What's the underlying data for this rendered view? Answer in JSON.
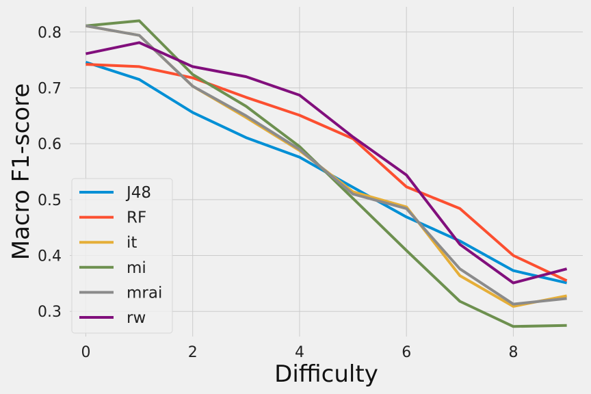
{
  "chart_data": {
    "type": "line",
    "xlabel": "Difficulty",
    "ylabel": "Macro F1-score",
    "xlim": [
      -0.3,
      9.3
    ],
    "ylim": [
      0.255,
      0.845
    ],
    "x": [
      0,
      1,
      2,
      3,
      4,
      5,
      6,
      7,
      8,
      9
    ],
    "x_ticks": [
      0,
      2,
      4,
      6,
      8
    ],
    "y_ticks": [
      0.3,
      0.4,
      0.5,
      0.6,
      0.7,
      0.8
    ],
    "x_tick_labels": [
      "0",
      "2",
      "4",
      "6",
      "8"
    ],
    "y_tick_labels": [
      "0.3",
      "0.4",
      "0.5",
      "0.6",
      "0.7",
      "0.8"
    ],
    "grid": true,
    "legend_position": "lower-left",
    "series": [
      {
        "name": "J48",
        "color": "#008fd5",
        "values": [
          0.746,
          0.715,
          0.656,
          0.611,
          0.576,
          0.522,
          0.469,
          0.426,
          0.373,
          0.351
        ]
      },
      {
        "name": "RF",
        "color": "#fc4f30",
        "values": [
          0.742,
          0.738,
          0.718,
          0.683,
          0.651,
          0.609,
          0.523,
          0.484,
          0.4,
          0.355
        ]
      },
      {
        "name": "it",
        "color": "#e5ae38",
        "values": [
          0.811,
          0.794,
          0.703,
          0.647,
          0.588,
          0.514,
          0.487,
          0.364,
          0.309,
          0.328
        ]
      },
      {
        "name": "mi",
        "color": "#6d904f",
        "values": [
          0.811,
          0.82,
          0.724,
          0.667,
          0.595,
          0.502,
          0.409,
          0.318,
          0.273,
          0.275
        ]
      },
      {
        "name": "mrai",
        "color": "#8b8b8b",
        "values": [
          0.811,
          0.794,
          0.703,
          0.65,
          0.59,
          0.51,
          0.484,
          0.376,
          0.313,
          0.323
        ]
      },
      {
        "name": "rw",
        "color": "#810f7c",
        "values": [
          0.761,
          0.781,
          0.738,
          0.72,
          0.687,
          0.612,
          0.544,
          0.42,
          0.351,
          0.376
        ]
      }
    ]
  }
}
